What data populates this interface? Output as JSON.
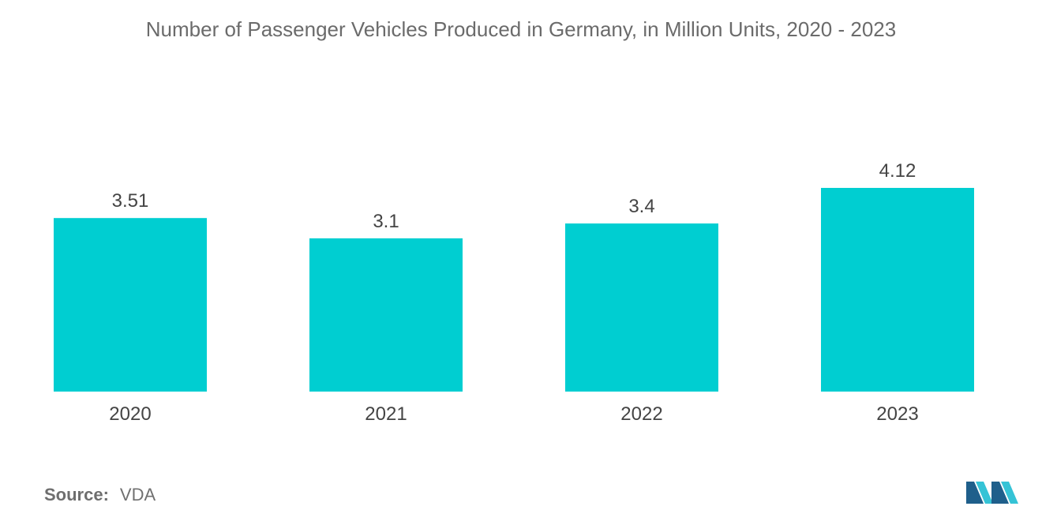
{
  "chart_data": {
    "type": "bar",
    "title": "Number of Passenger Vehicles Produced in Germany, in Million Units, 2020 - 2023",
    "categories": [
      "2020",
      "2021",
      "2022",
      "2023"
    ],
    "values": [
      3.51,
      3.1,
      3.4,
      4.12
    ],
    "value_labels": [
      "3.51",
      "3.1",
      "3.4",
      "4.12"
    ],
    "xlabel": "",
    "ylabel": "",
    "ylim": [
      0,
      4.12
    ],
    "grid": false,
    "bar_color": "#00CED1"
  },
  "source": {
    "label": "Source:",
    "value": "VDA"
  },
  "logo": {
    "icon": "mordor-intelligence-logo-icon",
    "colors": [
      "#1f5f8b",
      "#35c3d6"
    ]
  }
}
